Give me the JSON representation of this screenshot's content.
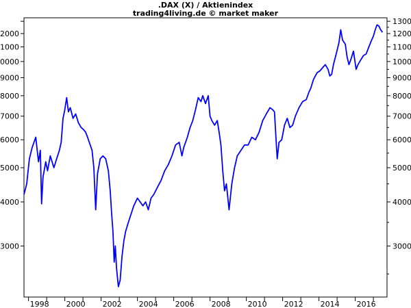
{
  "chart_data": {
    "type": "line",
    "title": ".DAX (X) / Aktienindex",
    "subtitle": "trading4living.de © market maker",
    "scale": "log",
    "grid": false,
    "legend": "none",
    "line_color": "#0000ff",
    "xlim": [
      1997.75,
      2017.75
    ],
    "ylim": [
      2150,
      13300
    ],
    "y_ticks": [
      3000,
      4000,
      5000,
      6000,
      7000,
      8000,
      9000,
      10000,
      11000,
      12000,
      13000
    ],
    "y_tick_labels_left": [
      "3000",
      "4000",
      "5000",
      "6000",
      "7000",
      "8000",
      "9000",
      "10000",
      "11000",
      "12000"
    ],
    "y_tick_labels_right": [
      "3000",
      "4000",
      "5000",
      "6000",
      "7000",
      "8000",
      "9000",
      "10000",
      "11000",
      "12000",
      "13000"
    ],
    "x_labels": [
      {
        "x": 1998,
        "label": "1998"
      },
      {
        "x": 2000,
        "label": "2000"
      },
      {
        "x": 2002,
        "label": "2002"
      },
      {
        "x": 2004,
        "label": "2004"
      },
      {
        "x": 2006,
        "label": "2006"
      },
      {
        "x": 2008,
        "label": "2008"
      },
      {
        "x": 2010,
        "label": "2010"
      },
      {
        "x": 2012,
        "label": "2012"
      },
      {
        "x": 2014,
        "label": "2014"
      },
      {
        "x": 2016,
        "label": "2016"
      }
    ],
    "series": [
      {
        "x": [
          1997.75,
          1997.9,
          1998.05,
          1998.2,
          1998.4,
          1998.55,
          1998.65,
          1998.72,
          1998.8,
          1998.95,
          1999.05,
          1999.2,
          1999.4,
          1999.55,
          1999.7,
          1999.8,
          1999.9,
          2000.0,
          2000.1,
          2000.2,
          2000.3,
          2000.45,
          2000.6,
          2000.75,
          2000.9,
          2001.05,
          2001.15,
          2001.25,
          2001.35,
          2001.5,
          2001.6,
          2001.7,
          2001.8,
          2001.95,
          2002.1,
          2002.25,
          2002.4,
          2002.5,
          2002.58,
          2002.65,
          2002.72,
          2002.78,
          2002.85,
          2002.95,
          2003.05,
          2003.15,
          2003.25,
          2003.35,
          2003.5,
          2003.65,
          2003.8,
          2004.0,
          2004.15,
          2004.3,
          2004.45,
          2004.6,
          2004.75,
          2004.9,
          2005.1,
          2005.3,
          2005.5,
          2005.7,
          2005.9,
          2006.1,
          2006.3,
          2006.45,
          2006.55,
          2006.75,
          2006.9,
          2007.05,
          2007.2,
          2007.35,
          2007.5,
          2007.6,
          2007.75,
          2007.9,
          2008.0,
          2008.1,
          2008.25,
          2008.4,
          2008.5,
          2008.6,
          2008.7,
          2008.8,
          2008.9,
          2009.05,
          2009.2,
          2009.35,
          2009.5,
          2009.7,
          2009.9,
          2010.1,
          2010.3,
          2010.5,
          2010.7,
          2010.9,
          2011.1,
          2011.3,
          2011.45,
          2011.55,
          2011.62,
          2011.7,
          2011.8,
          2011.95,
          2012.1,
          2012.25,
          2012.4,
          2012.55,
          2012.7,
          2012.9,
          2013.1,
          2013.3,
          2013.45,
          2013.55,
          2013.7,
          2013.9,
          2014.05,
          2014.2,
          2014.35,
          2014.5,
          2014.6,
          2014.7,
          2014.8,
          2014.95,
          2015.1,
          2015.2,
          2015.3,
          2015.45,
          2015.55,
          2015.65,
          2015.75,
          2015.9,
          2016.05,
          2016.15,
          2016.3,
          2016.45,
          2016.6,
          2016.75,
          2016.9,
          2017.0,
          2017.1,
          2017.2,
          2017.3,
          2017.4,
          2017.5
        ],
        "y": [
          4200,
          4500,
          5300,
          5700,
          6100,
          5200,
          5600,
          3950,
          4700,
          5200,
          4900,
          5400,
          5000,
          5300,
          5600,
          5900,
          6900,
          7300,
          7900,
          7200,
          7400,
          6900,
          7100,
          6700,
          6500,
          6400,
          6300,
          6100,
          5900,
          5600,
          5000,
          3800,
          4800,
          5300,
          5400,
          5300,
          4900,
          4300,
          3700,
          3300,
          2700,
          3000,
          2600,
          2300,
          2400,
          2800,
          3100,
          3300,
          3500,
          3700,
          3900,
          4100,
          4000,
          3900,
          4000,
          3800,
          4100,
          4200,
          4400,
          4600,
          4900,
          5100,
          5400,
          5800,
          5900,
          5400,
          5700,
          6100,
          6500,
          6800,
          7300,
          7900,
          7700,
          8000,
          7600,
          8000,
          7000,
          6800,
          6600,
          6800,
          6300,
          5800,
          4900,
          4300,
          4500,
          3800,
          4500,
          5000,
          5400,
          5600,
          5800,
          5800,
          6100,
          6000,
          6300,
          6800,
          7100,
          7400,
          7300,
          7200,
          6200,
          5300,
          5900,
          6000,
          6600,
          6900,
          6500,
          6600,
          7000,
          7400,
          7700,
          7800,
          8200,
          8400,
          8900,
          9300,
          9400,
          9600,
          9800,
          9500,
          9100,
          9200,
          9800,
          10500,
          11300,
          12300,
          11500,
          11200,
          10300,
          9800,
          10100,
          10700,
          9500,
          9800,
          10100,
          10400,
          10500,
          11000,
          11500,
          11800,
          12300,
          12700,
          12600,
          12300,
          12100
        ]
      }
    ]
  }
}
